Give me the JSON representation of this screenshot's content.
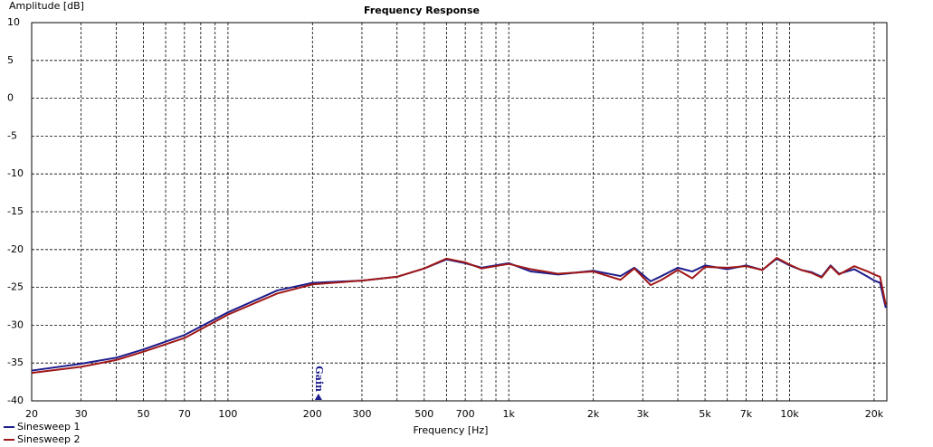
{
  "chart_data": {
    "type": "line",
    "title": "Frequency Response",
    "y_label": "Amplitude [dB]",
    "x_label": "Frequency [Hz]",
    "x_log": true,
    "grid": true,
    "xlim": [
      20,
      22200
    ],
    "ylim": [
      -40,
      10
    ],
    "xticks": [
      20,
      30,
      50,
      70,
      100,
      200,
      300,
      500,
      700,
      {
        "value": 1000,
        "label": "1k"
      },
      {
        "value": 2000,
        "label": "2k"
      },
      {
        "value": 3000,
        "label": "3k"
      },
      {
        "value": 5000,
        "label": "5k"
      },
      {
        "value": 7000,
        "label": "7k"
      },
      {
        "value": 10000,
        "label": "10k"
      },
      {
        "value": 20000,
        "label": "20k"
      }
    ],
    "xgrid_minor": [
      40,
      60,
      80,
      90,
      400,
      600,
      800,
      900,
      4000,
      6000,
      8000,
      9000
    ],
    "yticks": [
      10,
      5,
      0,
      -5,
      -10,
      -15,
      -20,
      -25,
      -30,
      -35,
      -40
    ],
    "legend": "bottom-left",
    "markers": [
      {
        "label": "Gain",
        "x": 210,
        "color": "#1c1c8c"
      }
    ],
    "x": [
      20,
      30,
      40,
      50,
      70,
      100,
      150,
      200,
      300,
      400,
      500,
      600,
      700,
      800,
      1000,
      1200,
      1500,
      2000,
      2500,
      2800,
      3200,
      3500,
      4000,
      4500,
      5000,
      6000,
      7000,
      8000,
      9000,
      10000,
      11000,
      12000,
      13000,
      14000,
      15000,
      17000,
      19000,
      20000,
      21000,
      22000
    ],
    "series": [
      {
        "name": "Sinesweep 1",
        "color": "#1c1c8c",
        "values": [
          -36.0,
          -35.1,
          -34.3,
          -33.2,
          -31.3,
          -28.3,
          -25.4,
          -24.4,
          -24.1,
          -23.6,
          -22.5,
          -21.3,
          -21.8,
          -22.4,
          -21.8,
          -22.9,
          -23.3,
          -22.8,
          -23.5,
          -22.4,
          -24.2,
          -23.5,
          -22.4,
          -22.9,
          -22.1,
          -22.6,
          -22.1,
          -22.7,
          -21.2,
          -22.1,
          -22.7,
          -23.0,
          -23.6,
          -22.1,
          -23.2,
          -22.6,
          -23.6,
          -24.1,
          -24.4,
          -27.7
        ]
      },
      {
        "name": "Sinesweep 2",
        "color": "#a01818",
        "values": [
          -36.3,
          -35.5,
          -34.6,
          -33.5,
          -31.7,
          -28.6,
          -25.8,
          -24.6,
          -24.1,
          -23.6,
          -22.5,
          -21.2,
          -21.7,
          -22.5,
          -21.9,
          -22.6,
          -23.2,
          -22.9,
          -24.0,
          -22.5,
          -24.7,
          -24.0,
          -22.7,
          -23.8,
          -22.3,
          -22.4,
          -22.2,
          -22.7,
          -21.1,
          -22.0,
          -22.7,
          -23.1,
          -23.7,
          -22.2,
          -23.3,
          -22.2,
          -22.9,
          -23.3,
          -23.6,
          -27.3
        ]
      }
    ]
  }
}
